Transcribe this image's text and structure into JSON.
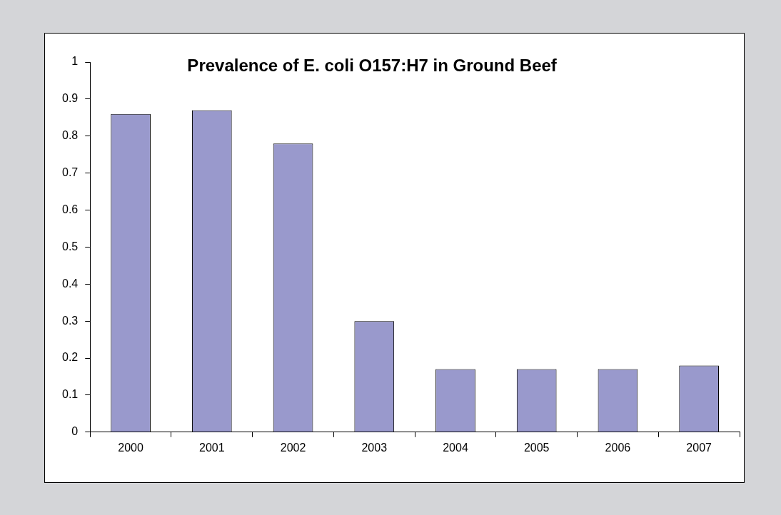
{
  "chart_data": {
    "type": "bar",
    "title": "Prevalence of E. coli O157:H7 in Ground Beef",
    "categories": [
      "2000",
      "2001",
      "2002",
      "2003",
      "2004",
      "2005",
      "2006",
      "2007"
    ],
    "values": [
      0.86,
      0.87,
      0.78,
      0.3,
      0.17,
      0.17,
      0.17,
      0.18
    ],
    "color": "#9999cc",
    "ylim": [
      0,
      1
    ],
    "yticks": [
      0,
      0.1,
      0.2,
      0.3,
      0.4,
      0.5,
      0.6,
      0.7,
      0.8,
      0.9,
      1
    ],
    "grid": false,
    "legend": false
  }
}
